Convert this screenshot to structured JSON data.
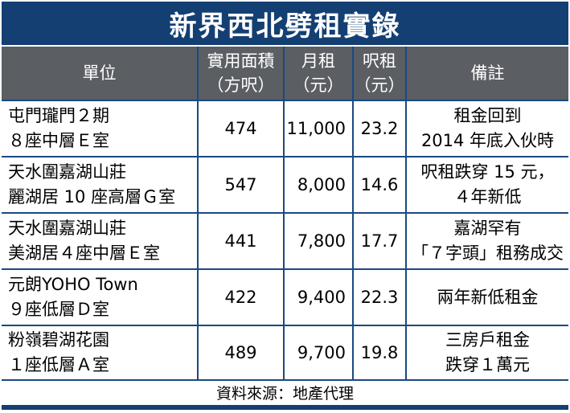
{
  "title": "新界西北劈租實錄",
  "headers": {
    "unit": "單位",
    "area_1": "實用面積",
    "area_2": "（方呎）",
    "rent_1": "月租",
    "rent_2": "（元）",
    "psf_1": "呎租",
    "psf_2": "（元）",
    "remarks": "備註"
  },
  "rows": [
    {
      "unit_1": "屯門瓏門２期",
      "unit_2": "８座中層Ｅ室",
      "area": "474",
      "rent": "11,000",
      "psf": "23.2",
      "remark_1": "租金回到",
      "remark_2": "2014 年底入伙時"
    },
    {
      "unit_1": "天水圍嘉湖山莊",
      "unit_2": "麗湖居 10 座高層Ｇ室",
      "area": "547",
      "rent": "8,000",
      "psf": "14.6",
      "remark_1": "呎租跌穿 15 元，",
      "remark_2": "４年新低"
    },
    {
      "unit_1": "天水圍嘉湖山莊",
      "unit_2": "美湖居４座中層Ｅ室",
      "area": "441",
      "rent": "7,800",
      "psf": "17.7",
      "remark_1": "嘉湖罕有",
      "remark_2": "「７字頭」租務成交"
    },
    {
      "unit_1": "元朗YOHO Town",
      "unit_2": "９座低層Ｄ室",
      "area": "422",
      "rent": "9,400",
      "psf": "22.3",
      "remark_1": "兩年新低租金",
      "remark_2": ""
    },
    {
      "unit_1": "粉嶺碧湖花園",
      "unit_2": "１座低層Ａ室",
      "area": "489",
      "rent": "9,700",
      "psf": "19.8",
      "remark_1": "三房戶租金",
      "remark_2": "跌穿１萬元"
    }
  ],
  "source": "資料來源：地產代理"
}
